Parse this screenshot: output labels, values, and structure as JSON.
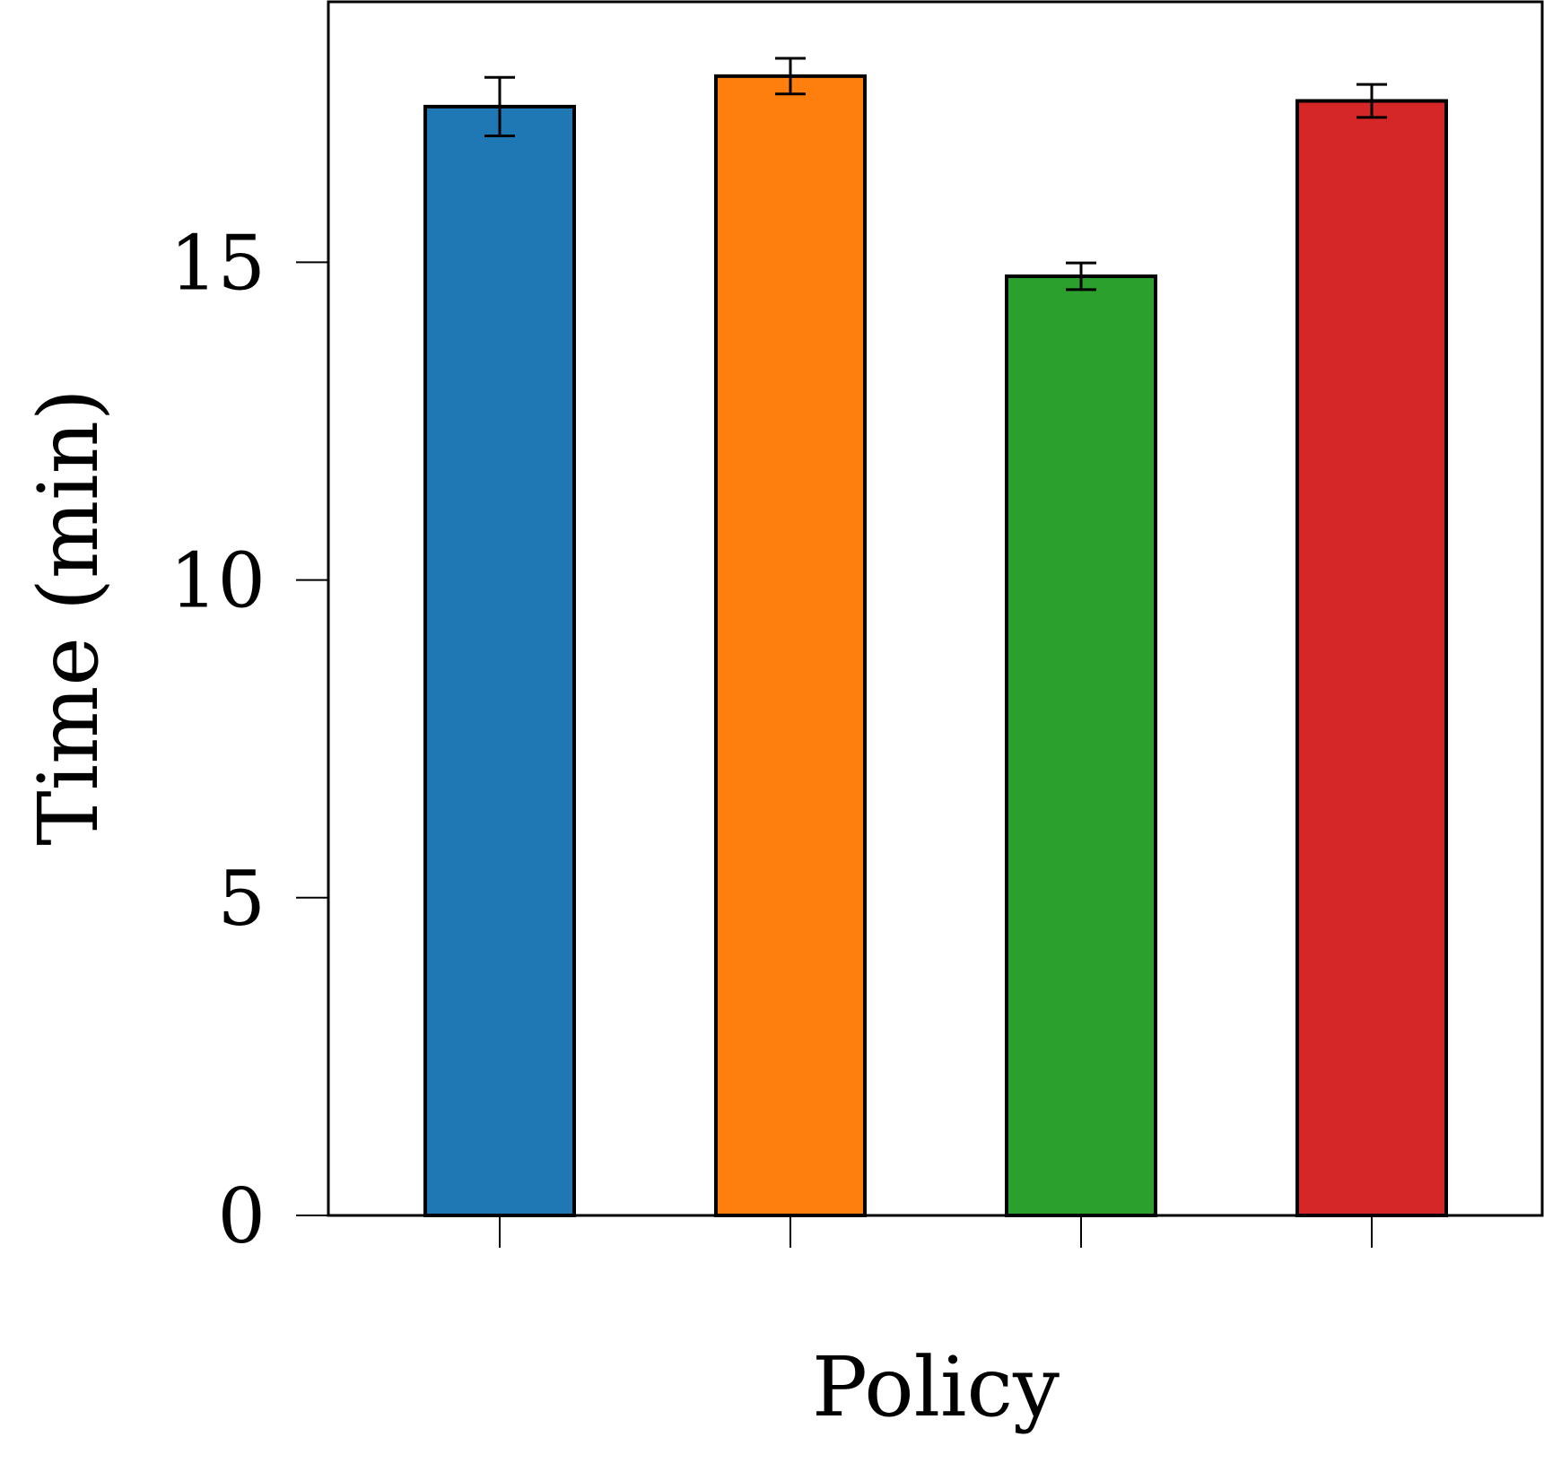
{
  "chart_data": {
    "type": "bar",
    "title": "",
    "xlabel": "Policy",
    "ylabel": "Time (min)",
    "categories": [
      "",
      "",
      "",
      ""
    ],
    "values": [
      17.45,
      17.93,
      14.78,
      17.54
    ],
    "errors": [
      0.46,
      0.28,
      0.21,
      0.26
    ],
    "colors": [
      "#1f77b4",
      "#ff7f0e",
      "#2ca02c",
      "#d62728"
    ],
    "ylim": [
      0,
      19.1
    ],
    "yticks": [
      0,
      5,
      10,
      15
    ],
    "grid": false,
    "legend": "none"
  }
}
